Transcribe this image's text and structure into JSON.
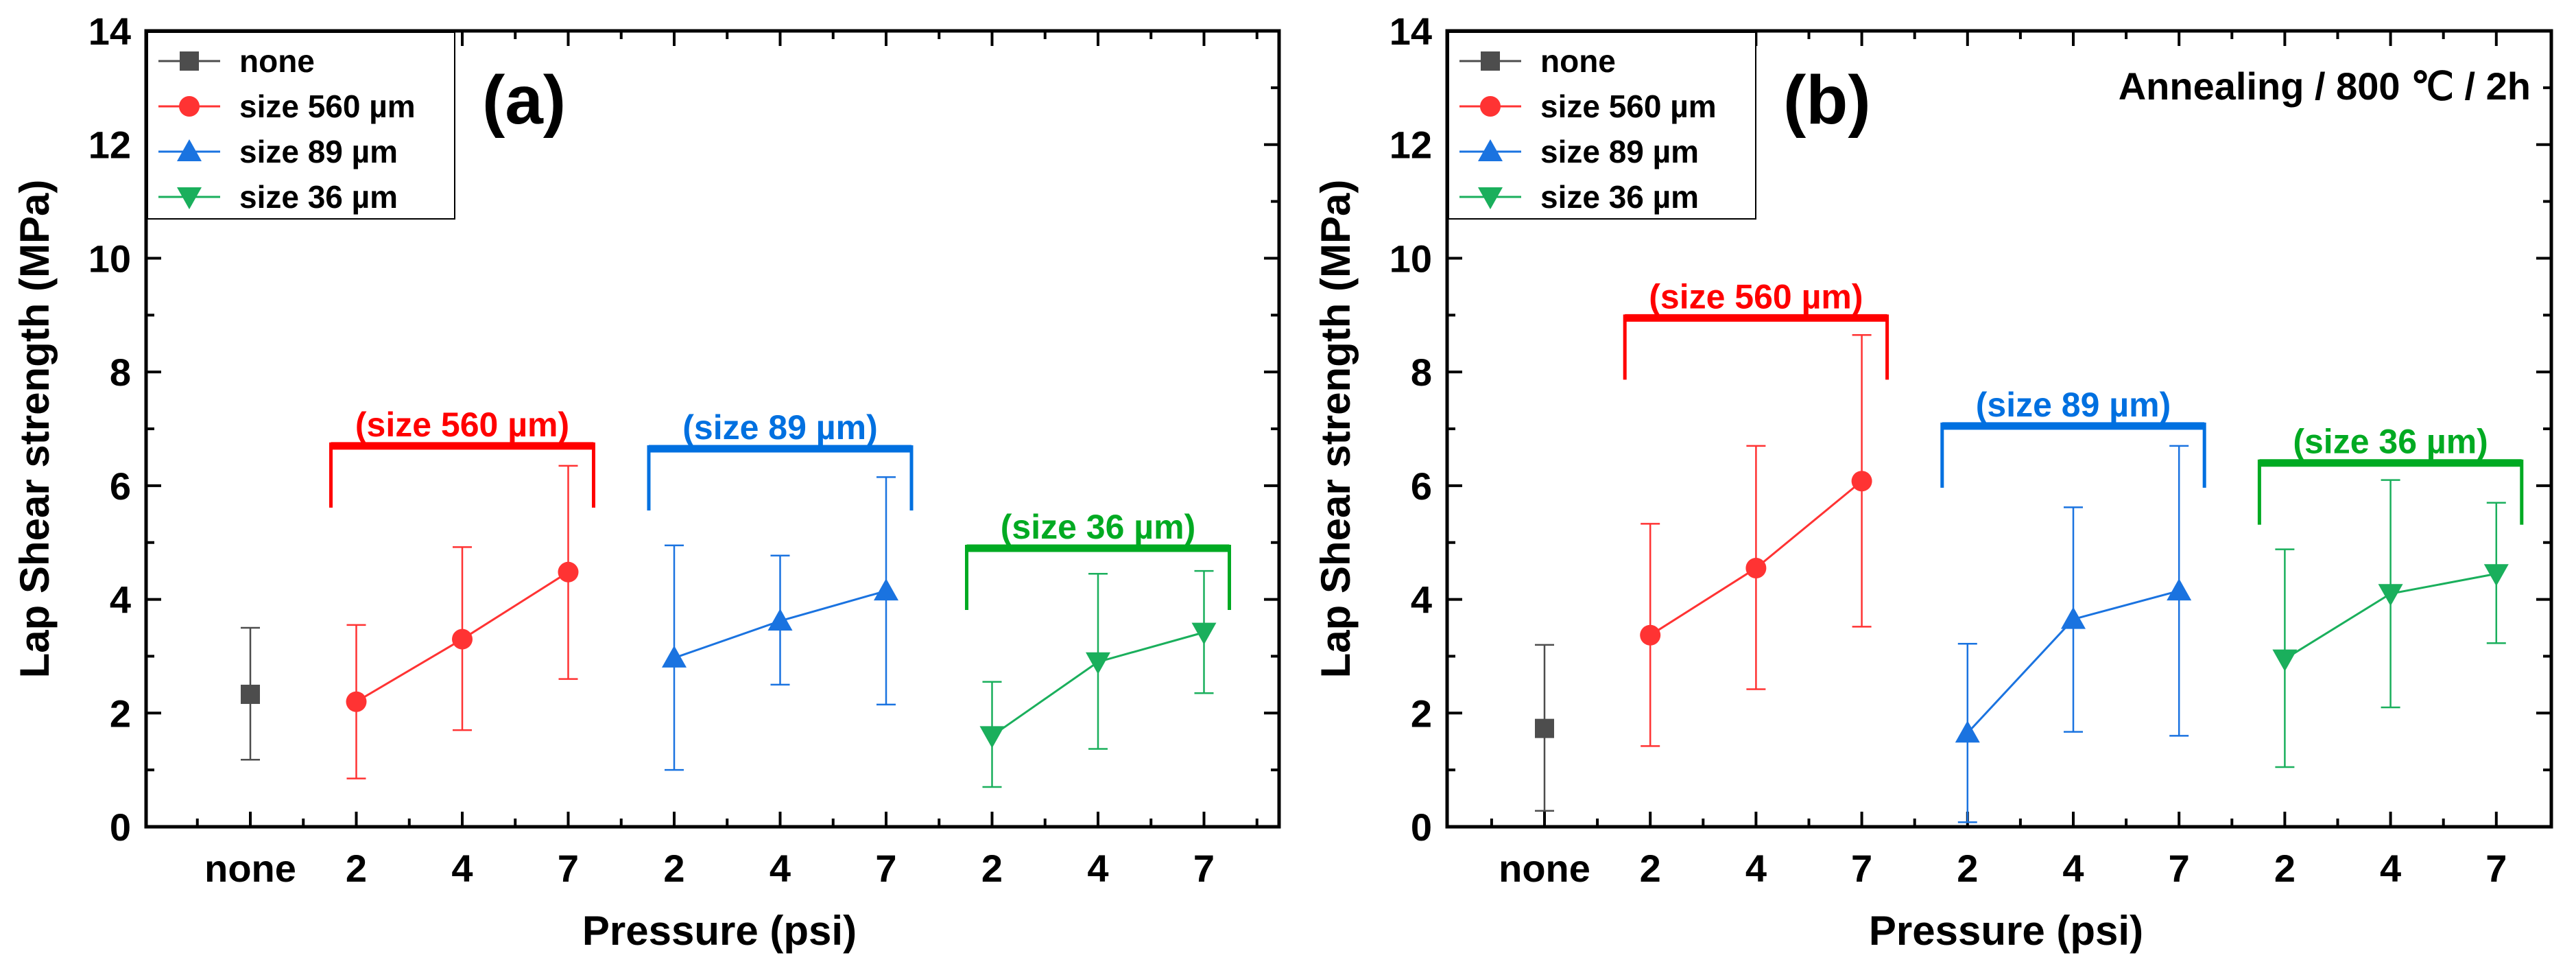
{
  "chart_data": [
    {
      "type": "line",
      "panel_label": "(a)",
      "annotation": "",
      "ylabel": "Lap Shear strength (MPa)",
      "xlabel": "Pressure (psi)",
      "ylim": [
        0,
        14
      ],
      "yticks": [
        0,
        2,
        4,
        6,
        8,
        10,
        12,
        14
      ],
      "categories": [
        "none",
        "2",
        "4",
        "7",
        "2",
        "4",
        "7",
        "2",
        "4",
        "7"
      ],
      "legend_position": "top-left",
      "series": [
        {
          "name": "none",
          "color": "#4d4d4d",
          "marker": "square",
          "x": [
            0
          ],
          "y": [
            2.33
          ],
          "err_low": [
            1.18
          ],
          "err_high": [
            3.5
          ]
        },
        {
          "name": "size 560 µm",
          "color": "#ff3333",
          "marker": "circle",
          "x": [
            1,
            2,
            3
          ],
          "y": [
            2.2,
            3.3,
            4.48
          ],
          "err_low": [
            0.85,
            1.7,
            2.6
          ],
          "err_high": [
            3.55,
            4.92,
            6.35
          ]
        },
        {
          "name": "size 89 µm",
          "color": "#1a73e0",
          "marker": "triangle-up",
          "x": [
            4,
            5,
            6
          ],
          "y": [
            2.97,
            3.62,
            4.15
          ],
          "err_low": [
            1.0,
            2.5,
            2.15
          ],
          "err_high": [
            4.95,
            4.77,
            6.15
          ]
        },
        {
          "name": "size 36 µm",
          "color": "#1aaf5c",
          "marker": "triangle-down",
          "x": [
            7,
            8,
            9
          ],
          "y": [
            1.6,
            2.9,
            3.42
          ],
          "err_low": [
            0.7,
            1.37,
            2.35
          ],
          "err_high": [
            2.55,
            4.45,
            4.5
          ]
        }
      ],
      "groups": [
        {
          "label": "(size 560 µm)",
          "color": "#ff0000",
          "x_range": [
            1,
            3
          ],
          "level": 6.7
        },
        {
          "label": "(size 89 µm)",
          "color": "#0070e0",
          "x_range": [
            4,
            6
          ],
          "level": 6.65
        },
        {
          "label": "(size 36 µm)",
          "color": "#00aa22",
          "x_range": [
            7,
            9
          ],
          "level": 4.9
        }
      ]
    },
    {
      "type": "line",
      "panel_label": "(b)",
      "annotation": "Annealing / 800 ℃ / 2h",
      "ylabel": "Lap Shear strength (MPa)",
      "xlabel": "Pressure (psi)",
      "ylim": [
        0,
        14
      ],
      "yticks": [
        0,
        2,
        4,
        6,
        8,
        10,
        12,
        14
      ],
      "categories": [
        "none",
        "2",
        "4",
        "7",
        "2",
        "4",
        "7",
        "2",
        "4",
        "7"
      ],
      "legend_position": "top-left",
      "series": [
        {
          "name": "none",
          "color": "#4d4d4d",
          "marker": "square",
          "x": [
            0
          ],
          "y": [
            1.73
          ],
          "err_low": [
            0.28
          ],
          "err_high": [
            3.2
          ]
        },
        {
          "name": "size 560 µm",
          "color": "#ff3333",
          "marker": "circle",
          "x": [
            1,
            2,
            3
          ],
          "y": [
            3.37,
            4.55,
            6.08
          ],
          "err_low": [
            1.42,
            2.42,
            3.52
          ],
          "err_high": [
            5.33,
            6.7,
            8.65
          ]
        },
        {
          "name": "size 89 µm",
          "color": "#1a73e0",
          "marker": "triangle-up",
          "x": [
            4,
            5,
            6
          ],
          "y": [
            1.65,
            3.65,
            4.15
          ],
          "err_low": [
            0.08,
            1.67,
            1.6
          ],
          "err_high": [
            3.22,
            5.62,
            6.7
          ]
        },
        {
          "name": "size 36 µm",
          "color": "#1aaf5c",
          "marker": "triangle-down",
          "x": [
            7,
            8,
            9
          ],
          "y": [
            2.95,
            4.1,
            4.45
          ],
          "err_low": [
            1.05,
            2.1,
            3.23
          ],
          "err_high": [
            4.88,
            6.1,
            5.7
          ]
        }
      ],
      "groups": [
        {
          "label": "(size 560 µm)",
          "color": "#ff0000",
          "x_range": [
            1,
            3
          ],
          "level": 8.95
        },
        {
          "label": "(size 89 µm)",
          "color": "#0070e0",
          "x_range": [
            4,
            6
          ],
          "level": 7.05
        },
        {
          "label": "(size 36 µm)",
          "color": "#00aa22",
          "x_range": [
            7,
            9
          ],
          "level": 6.4
        }
      ]
    }
  ]
}
